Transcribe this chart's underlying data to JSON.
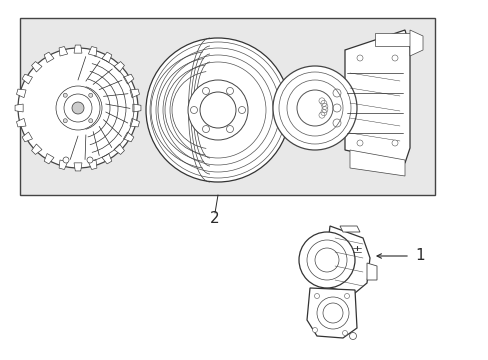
{
  "bg_color": "#f5f5f5",
  "box_bg": "#e8e8e8",
  "white": "#ffffff",
  "lc": "#2a2a2a",
  "lc_light": "#888888",
  "label_1": "1",
  "label_2": "2",
  "fig_width": 4.89,
  "fig_height": 3.6,
  "dpi": 100
}
